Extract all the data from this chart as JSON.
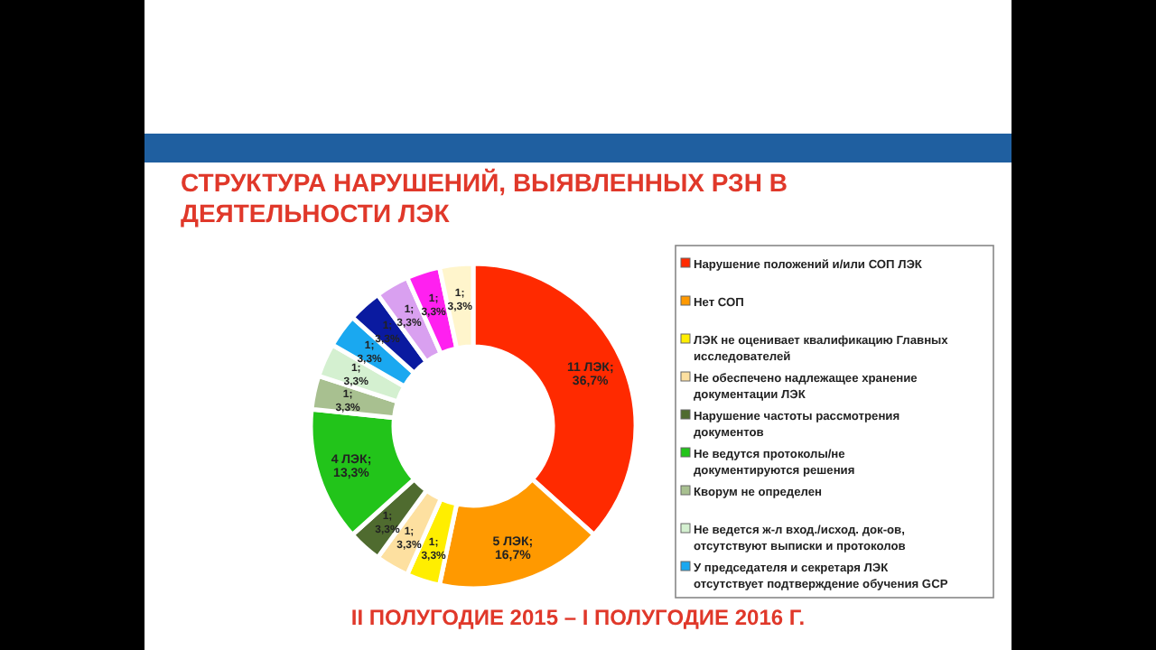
{
  "chart_data": {
    "type": "donut",
    "title": "СТРУКТУРА НАРУШЕНИЙ, ВЫЯВЛЕННЫХ РЗН В ДЕЯТЕЛЬНОСТИ ЛЭК",
    "subtitle": "II ПОЛУГОДИЕ 2015 – I ПОЛУГОДИЕ 2016 Г.",
    "categories": [
      "Нарушение положений и/или СОП ЛЭК",
      "Нет СОП",
      "ЛЭК не оценивает квалификацию Главных исследователей",
      "Не обеспечено надлежащее хранение документации ЛЭК",
      "Нарушение частоты рассмотрения документов",
      "Не ведутся протоколы/не документируются решения",
      "Кворум не определен",
      "Не ведется ж-л вход./исход. док-ов, отсутствуют выписки и протоколов",
      "У председателя и секретаря ЛЭК отсутствует подтверждение обучения GCP",
      null,
      null,
      null,
      null
    ],
    "values": [
      11,
      5,
      1,
      1,
      1,
      4,
      1,
      1,
      1,
      1,
      1,
      1,
      1
    ],
    "value_labels": [
      "11 ЛЭК; 36,7%",
      "5 ЛЭК; 16,7%",
      "1; 3,3%",
      "1; 3,3%",
      "1; 3,3%",
      "4 ЛЭК; 13,3%",
      "1; 3,3%",
      "1; 3,3%",
      "1; 3,3%",
      "1; 3,3%",
      "1; 3,3%",
      "1; 3,3%",
      "1; 3,3%"
    ],
    "colors": [
      "#ff2a00",
      "#ff9900",
      "#ffee00",
      "#fde0a0",
      "#4f6b2f",
      "#22c41a",
      "#a8c090",
      "#d4f0d0",
      "#1aa8f0",
      "#0a1aa0",
      "#d9a0f0",
      "#ff20f0",
      "#fff5cc"
    ],
    "legend": "right"
  }
}
